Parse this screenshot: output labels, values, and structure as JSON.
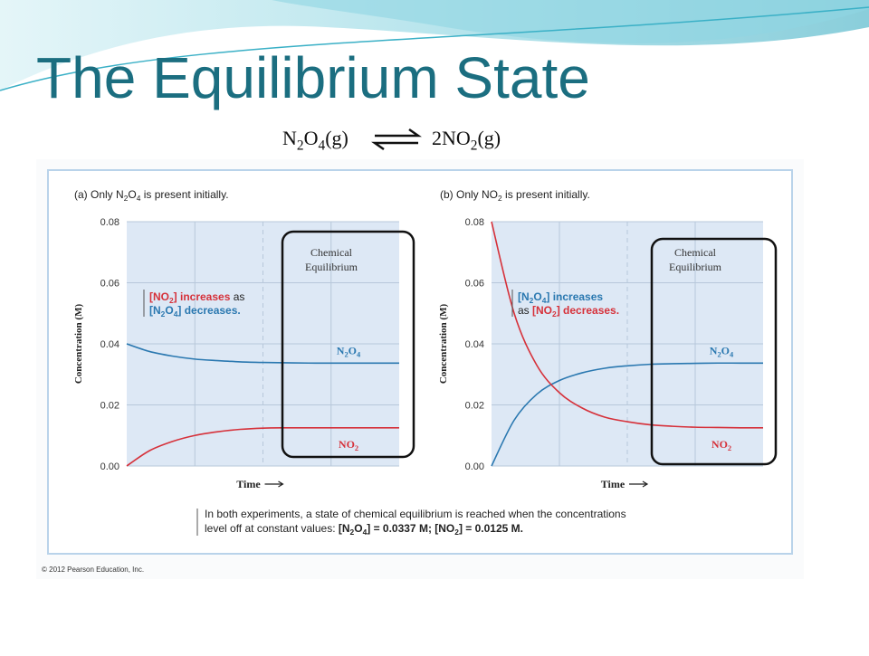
{
  "header": {
    "title": "The Equilibrium State",
    "equation": {
      "left": [
        "N",
        "2",
        "O",
        "4",
        "(g)"
      ],
      "right": [
        "2NO",
        "2",
        "(g)"
      ]
    }
  },
  "chart_data": [
    {
      "type": "line",
      "title": [
        "(a) Only N",
        "2",
        "O",
        "4",
        " is present initially."
      ],
      "y_label": "Concentration (M)",
      "x_label": "Time",
      "categories": [
        null,
        null,
        null,
        null,
        null,
        null,
        null,
        null,
        null,
        null,
        null,
        null,
        null
      ],
      "series": [
        {
          "name": [
            "N",
            "2",
            "O",
            "4"
          ],
          "color": "#2a78b0",
          "values": [
            0.04,
            0.0375,
            0.036,
            0.035,
            0.0345,
            0.0341,
            0.0339,
            0.0338,
            0.0337,
            0.0337,
            0.0337,
            0.0337,
            0.0337
          ]
        },
        {
          "name": [
            "NO",
            "2"
          ],
          "color": "#d6313a",
          "values": [
            0,
            0.005,
            0.008,
            0.01,
            0.0112,
            0.012,
            0.0124,
            0.0125,
            0.0125,
            0.0125,
            0.0125,
            0.0125,
            0.0125
          ]
        }
      ],
      "ylim": [
        0,
        0.08
      ],
      "yticks": [
        {
          "value": 0,
          "label": "0.00"
        },
        {
          "value": 0.02,
          "label": "0.02"
        },
        {
          "value": 0.04,
          "label": "0.04"
        },
        {
          "value": 0.06,
          "label": "0.06"
        },
        {
          "value": 0.08,
          "label": "0.08"
        }
      ],
      "grid": true,
      "annotation": [
        [
          {
            "segments": [
              "[NO",
              "2",
              "] increases"
            ],
            "color": "#d6313a"
          },
          {
            "segments": [
              " as"
            ],
            "color": "#222222"
          }
        ],
        [
          {
            "segments": [
              "[N",
              "2",
              "O",
              "4",
              "] decreases."
            ],
            "color": "#2a78b0"
          }
        ]
      ],
      "box_label": [
        "Chemical",
        "Equilibrium"
      ]
    },
    {
      "type": "line",
      "title": [
        "(b) Only NO",
        "2",
        " is present initially."
      ],
      "y_label": "Concentration (M)",
      "x_label": "Time",
      "categories": [
        null,
        null,
        null,
        null,
        null,
        null,
        null,
        null,
        null,
        null,
        null,
        null,
        null
      ],
      "series": [
        {
          "name": [
            "N",
            "2",
            "O",
            "4"
          ],
          "color": "#2a78b0",
          "values": [
            0,
            0.015,
            0.0235,
            0.028,
            0.0305,
            0.032,
            0.0328,
            0.0333,
            0.0335,
            0.0336,
            0.0337,
            0.0337,
            0.0337
          ]
        },
        {
          "name": [
            "NO",
            "2"
          ],
          "color": "#d6313a",
          "values": [
            0.08,
            0.05,
            0.033,
            0.024,
            0.019,
            0.016,
            0.0145,
            0.0135,
            0.013,
            0.0127,
            0.0126,
            0.0125,
            0.0125
          ]
        }
      ],
      "ylim": [
        0,
        0.08
      ],
      "yticks": [
        {
          "value": 0,
          "label": "0.00"
        },
        {
          "value": 0.02,
          "label": "0.02"
        },
        {
          "value": 0.04,
          "label": "0.04"
        },
        {
          "value": 0.06,
          "label": "0.06"
        },
        {
          "value": 0.08,
          "label": "0.08"
        }
      ],
      "grid": true,
      "annotation": [
        [
          {
            "segments": [
              "[N",
              "2",
              "O",
              "4",
              "] increases"
            ],
            "color": "#2a78b0"
          }
        ],
        [
          {
            "segments": [
              "as "
            ],
            "color": "#222222"
          },
          {
            "segments": [
              "[NO",
              "2",
              "] decreases."
            ],
            "color": "#d6313a"
          }
        ]
      ],
      "box_label": [
        "Chemical",
        "Equilibrium"
      ]
    }
  ],
  "note": {
    "line1": "In both experiments, a state of chemical equilibrium is reached when the concentrations",
    "line2": "level off at constant values: ",
    "values": [
      "[N",
      "2",
      "O",
      "4",
      "] = 0.0337 M; [NO",
      "2",
      "] = 0.0125 M."
    ]
  },
  "copyright": "© 2012 Pearson Education, Inc."
}
